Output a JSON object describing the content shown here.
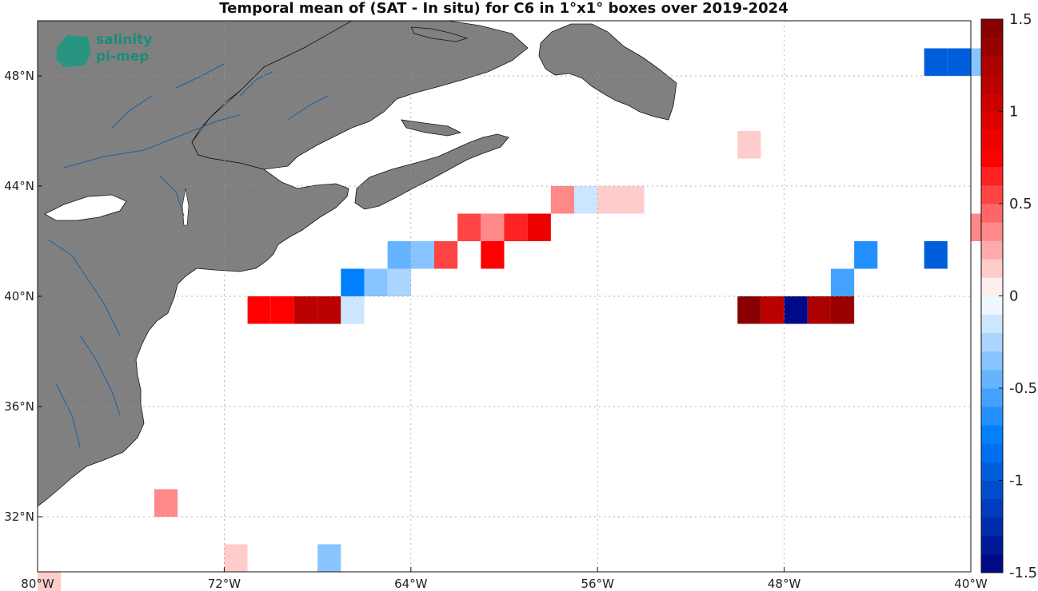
{
  "title": "Temporal mean of (SAT - In situ) for C6 in 1°x1° boxes over 2019-2024",
  "logo": {
    "line1": "salinity",
    "line2": "pi-mep"
  },
  "map": {
    "lon_range": [
      -80,
      -40
    ],
    "lat_range": [
      30,
      50
    ],
    "lon_ticks": [
      -80,
      -72,
      -64,
      -56,
      -48,
      -40
    ],
    "lat_ticks": [
      32,
      36,
      40,
      44,
      48
    ],
    "lon_tick_labels": [
      "80°W",
      "72°W",
      "64°W",
      "56°W",
      "48°W",
      "40°W"
    ],
    "lat_tick_labels": [
      "32°N",
      "36°N",
      "40°N",
      "44°N",
      "48°N"
    ],
    "grid": true,
    "land_color": "#808080"
  },
  "colorbar": {
    "range": [
      -1.5,
      1.5
    ],
    "ticks": [
      1.5,
      1,
      0.5,
      0,
      -0.5,
      -1,
      -1.5
    ],
    "tick_labels": [
      "1.5",
      "1",
      "0.5",
      "0",
      "-0.5",
      "-1",
      "-1.5"
    ],
    "levels": 30,
    "color_high": "#7f0000",
    "color_zero": "#ffffff",
    "color_low": "#00007f"
  },
  "chart_data": {
    "type": "heatmap",
    "title": "Temporal mean of (SAT - In situ) for C6 in 1°x1° boxes over 2019-2024",
    "x_label": "",
    "y_label": "",
    "cell_size_deg": 1,
    "cells": [
      {
        "lon": -42,
        "lat": 49,
        "value": -1.0
      },
      {
        "lon": -41,
        "lat": 49,
        "value": -1.0
      },
      {
        "lon": -40,
        "lat": 49,
        "value": -0.3
      },
      {
        "lon": -50,
        "lat": 46,
        "value": 0.15
      },
      {
        "lon": -58,
        "lat": 44,
        "value": 0.3
      },
      {
        "lon": -57,
        "lat": 44,
        "value": -0.15
      },
      {
        "lon": -56,
        "lat": 44,
        "value": 0.15
      },
      {
        "lon": -55,
        "lat": 44,
        "value": 0.15
      },
      {
        "lon": -62,
        "lat": 43,
        "value": 0.5
      },
      {
        "lon": -61,
        "lat": 43,
        "value": 0.3
      },
      {
        "lon": -60,
        "lat": 43,
        "value": 0.6
      },
      {
        "lon": -59,
        "lat": 43,
        "value": 0.85
      },
      {
        "lon": -40,
        "lat": 43,
        "value": 0.35
      },
      {
        "lon": -65,
        "lat": 42,
        "value": -0.5
      },
      {
        "lon": -64,
        "lat": 42,
        "value": -0.35
      },
      {
        "lon": -63,
        "lat": 42,
        "value": 0.55
      },
      {
        "lon": -61,
        "lat": 42,
        "value": 0.75
      },
      {
        "lon": -45,
        "lat": 42,
        "value": -0.7
      },
      {
        "lon": -42,
        "lat": 42,
        "value": -1.0
      },
      {
        "lon": -67,
        "lat": 41,
        "value": -0.75
      },
      {
        "lon": -66,
        "lat": 41,
        "value": -0.4
      },
      {
        "lon": -65,
        "lat": 41,
        "value": -0.25
      },
      {
        "lon": -46,
        "lat": 41,
        "value": -0.55
      },
      {
        "lon": -71,
        "lat": 40,
        "value": 0.75
      },
      {
        "lon": -70,
        "lat": 40,
        "value": 0.75
      },
      {
        "lon": -69,
        "lat": 40,
        "value": 1.1
      },
      {
        "lon": -68,
        "lat": 40,
        "value": 1.1
      },
      {
        "lon": -67,
        "lat": 40,
        "value": -0.12
      },
      {
        "lon": -50,
        "lat": 40,
        "value": 1.4
      },
      {
        "lon": -49,
        "lat": 40,
        "value": 1.15
      },
      {
        "lon": -48,
        "lat": 40,
        "value": -1.5
      },
      {
        "lon": -47,
        "lat": 40,
        "value": 1.2
      },
      {
        "lon": -46,
        "lat": 40,
        "value": 1.35
      },
      {
        "lon": -75,
        "lat": 33,
        "value": 0.3
      },
      {
        "lon": -72,
        "lat": 31,
        "value": 0.15
      },
      {
        "lon": -68,
        "lat": 31,
        "value": -0.35
      },
      {
        "lon": -80,
        "lat": 30,
        "value": 0.15
      }
    ]
  }
}
